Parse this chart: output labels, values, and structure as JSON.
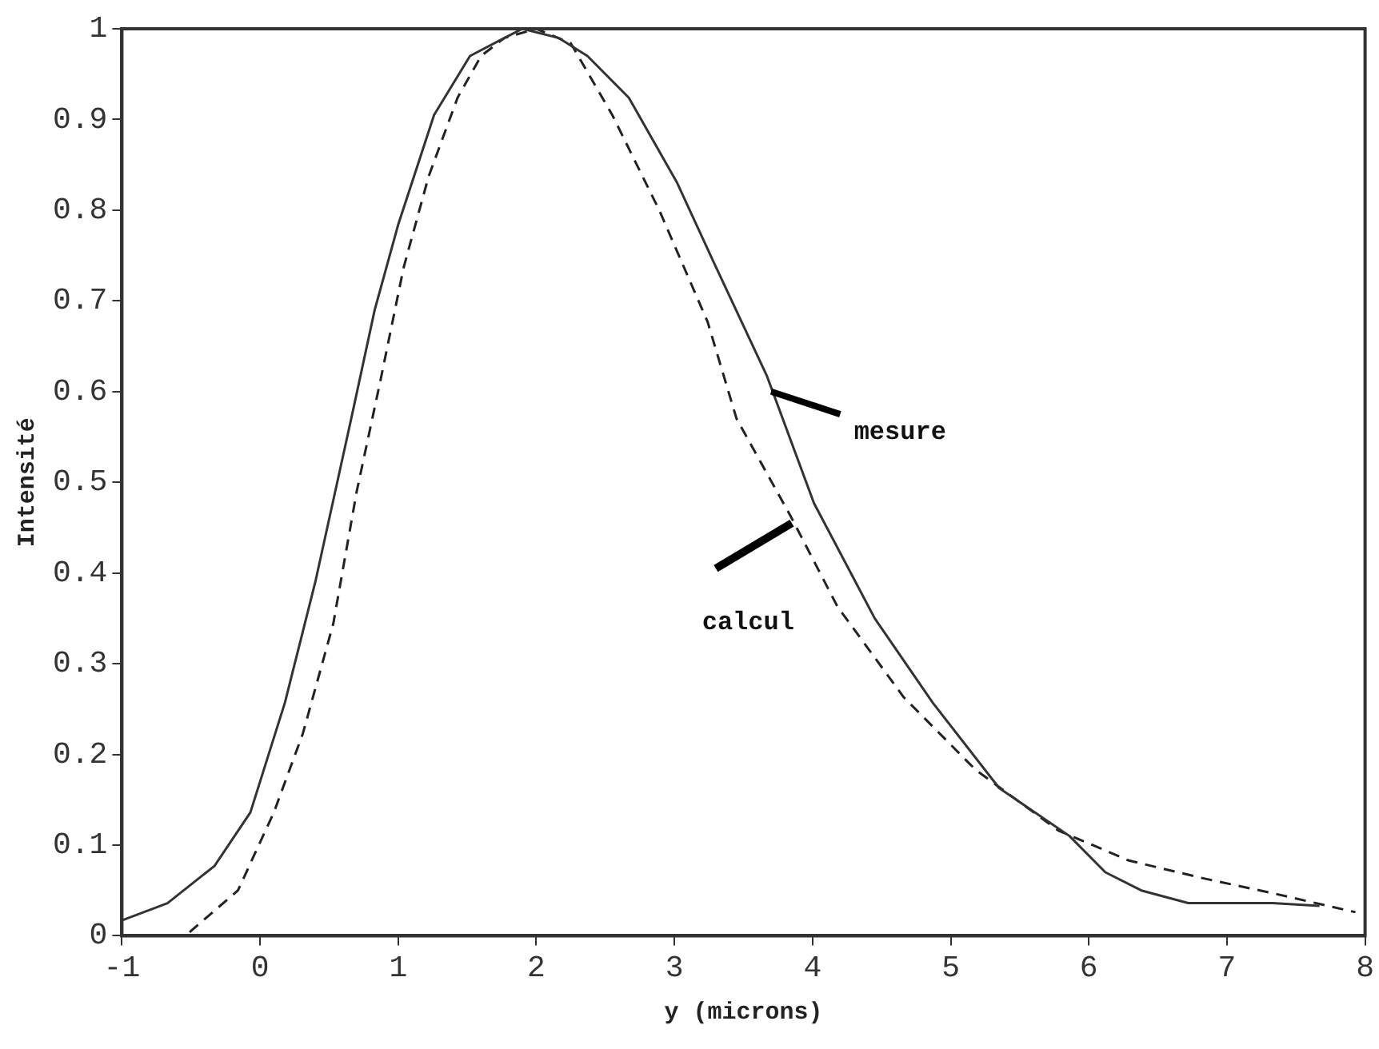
{
  "chart_data": {
    "type": "line",
    "xlabel": "y (microns)",
    "ylabel": "Intensité",
    "xlim": [
      -1,
      8
    ],
    "ylim": [
      0,
      1
    ],
    "xticks": [
      -1,
      0,
      1,
      2,
      3,
      4,
      5,
      6,
      7,
      8
    ],
    "yticks": [
      0,
      0.1,
      0.2,
      0.3,
      0.4,
      0.5,
      0.6,
      0.7,
      0.8,
      0.9,
      1
    ],
    "grid": false,
    "legend": false,
    "marker": "none",
    "series": [
      {
        "name": "mesure",
        "color": "#333333",
        "line_style": "solid",
        "x": [
          -1,
          -0.67,
          -0.33,
          -0.07,
          0.18,
          0.4,
          0.66,
          0.83,
          1.0,
          1.26,
          1.52,
          1.77,
          1.9,
          2.16,
          2.37,
          2.67,
          3.02,
          3.28,
          3.67,
          4.01,
          4.45,
          4.87,
          5.35,
          5.86,
          6.12,
          6.38,
          6.72,
          7.33,
          7.67
        ],
        "values": [
          0.017,
          0.036,
          0.077,
          0.136,
          0.257,
          0.39,
          0.57,
          0.69,
          0.784,
          0.905,
          0.97,
          0.99,
          1.0,
          0.99,
          0.97,
          0.924,
          0.83,
          0.744,
          0.617,
          0.477,
          0.35,
          0.257,
          0.163,
          0.11,
          0.07,
          0.05,
          0.036,
          0.036,
          0.033
        ]
      },
      {
        "name": "calcul",
        "color": "#222222",
        "line_style": "dashed",
        "x": [
          -0.51,
          -0.16,
          0.1,
          0.31,
          0.53,
          0.7,
          0.87,
          1.04,
          1.22,
          1.43,
          1.6,
          1.77,
          2.0,
          2.25,
          2.55,
          2.89,
          3.24,
          3.45,
          3.84,
          4.18,
          4.66,
          5.18,
          5.78,
          6.29,
          6.81,
          7.33,
          7.93
        ],
        "values": [
          0.004,
          0.05,
          0.136,
          0.223,
          0.344,
          0.49,
          0.611,
          0.737,
          0.837,
          0.924,
          0.97,
          0.99,
          1.0,
          0.984,
          0.905,
          0.8,
          0.677,
          0.57,
          0.463,
          0.363,
          0.263,
          0.183,
          0.116,
          0.083,
          0.064,
          0.047,
          0.026
        ]
      }
    ]
  }
}
